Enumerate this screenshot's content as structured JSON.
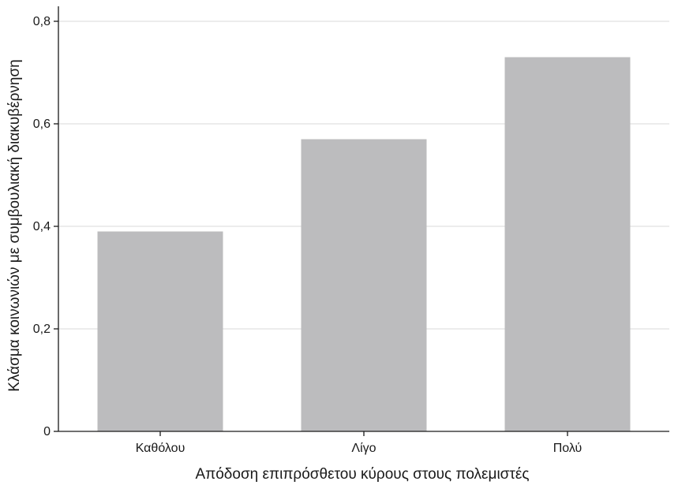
{
  "chart_data": {
    "type": "bar",
    "categories": [
      "Καθόλου",
      "Λίγο",
      "Πολύ"
    ],
    "values": [
      0.39,
      0.57,
      0.73
    ],
    "title": "",
    "xlabel": "Απόδοση επιπρόσθετου κύρους στους πολεμιστές",
    "ylabel": "Κλάσμα κοινωνιών με συμβουλιακή διακυβέρνηση",
    "ylim": [
      0,
      0.8
    ],
    "yticks": [
      0,
      0.2,
      0.4,
      0.6,
      0.8
    ],
    "ytick_labels": [
      "0",
      "0,2",
      "0,4",
      "0,6",
      "0,8"
    ],
    "grid": "horizontal",
    "bar_color": "#bcbcbe",
    "grid_color": "#d9d9d9",
    "axis_color": "#1a1a1a"
  }
}
